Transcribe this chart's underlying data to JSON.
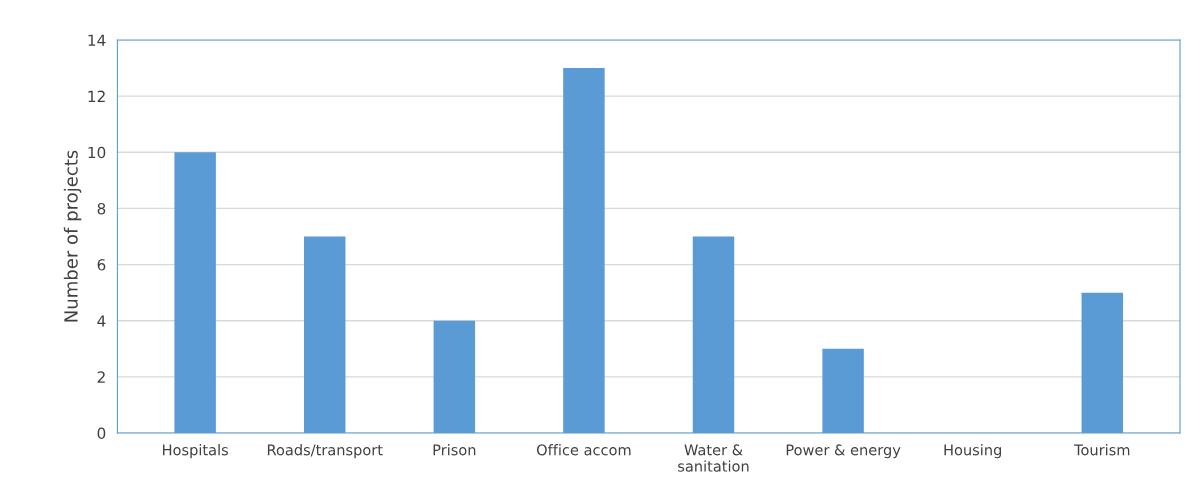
{
  "chart_data": {
    "type": "bar",
    "ylabel": "Number of projects",
    "categories": [
      "Hospitals",
      "Roads/transport",
      "Prison",
      "Office accom",
      "Water &\nsanitation",
      "Power & energy",
      "Housing",
      "Tourism"
    ],
    "values": [
      10,
      7,
      4,
      13,
      7,
      3,
      0,
      5
    ],
    "color": "#5b9bd5",
    "ylim": [
      0,
      14
    ],
    "yticks": [
      0,
      2,
      4,
      6,
      8,
      10,
      12,
      14
    ],
    "grid": "y"
  }
}
